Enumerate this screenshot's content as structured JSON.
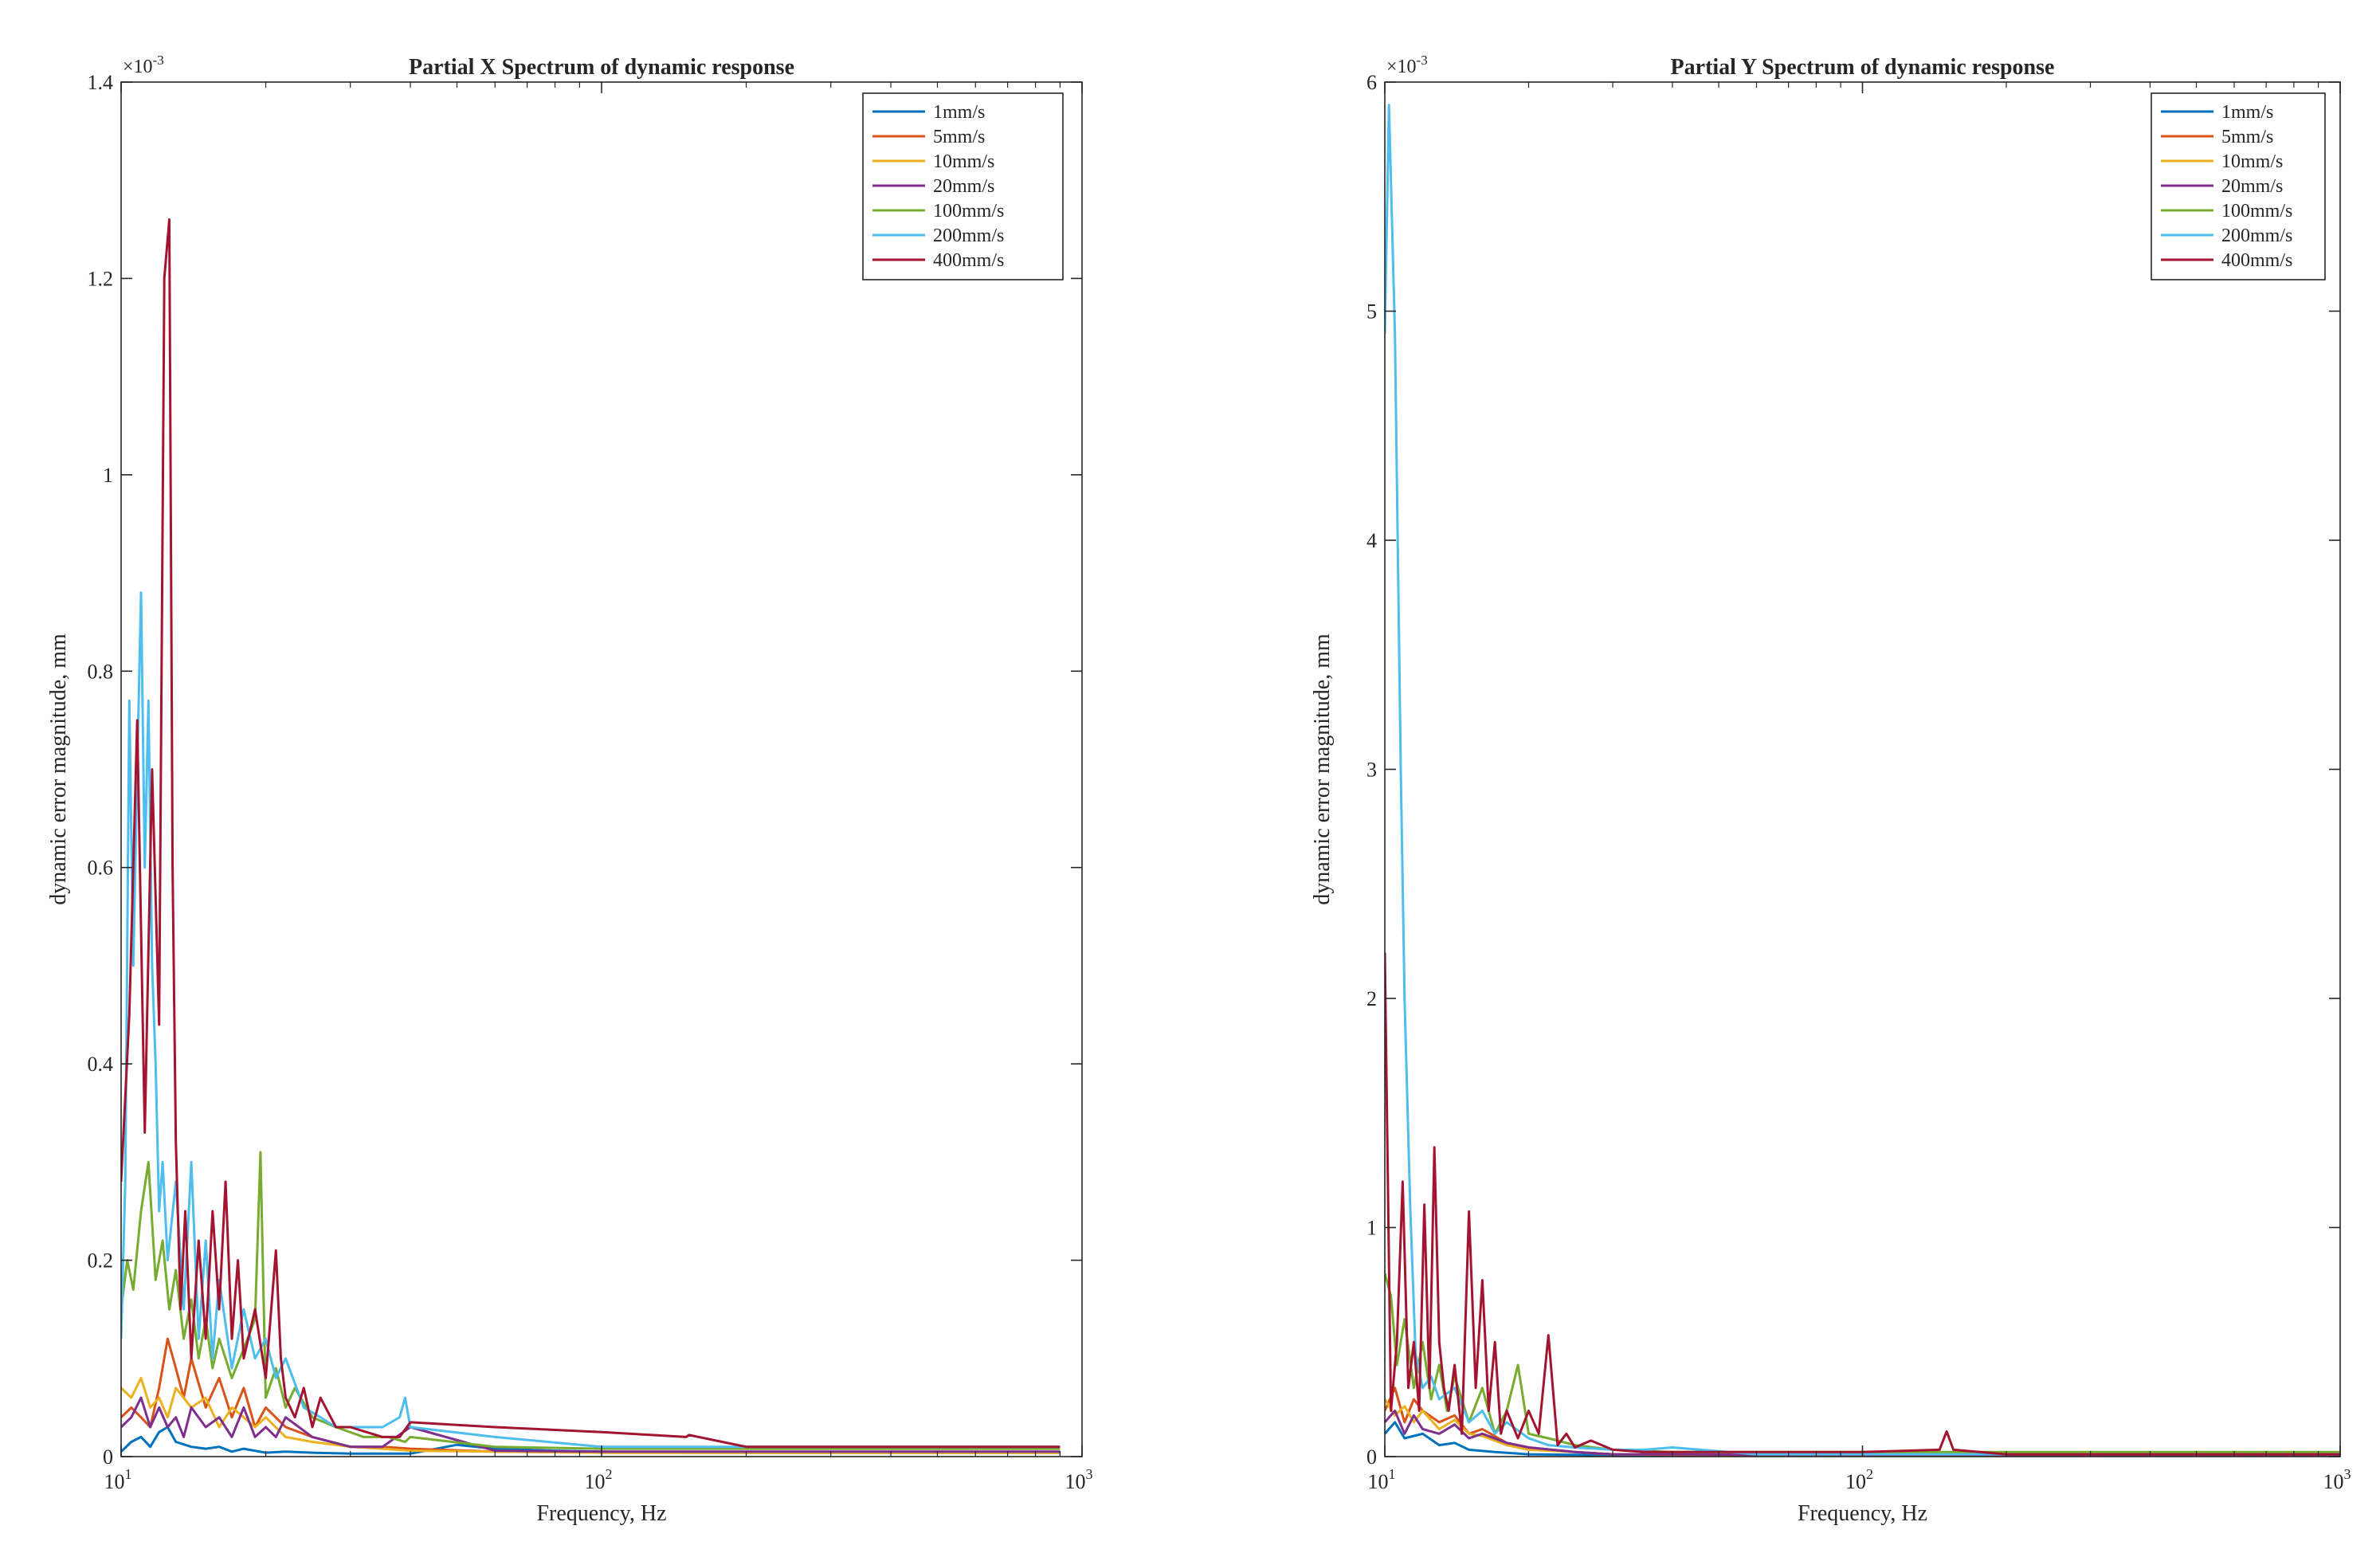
{
  "series_meta": [
    {
      "name": "1mm/s",
      "color": "#0072BD"
    },
    {
      "name": "5mm/s",
      "color": "#D95319"
    },
    {
      "name": "10mm/s",
      "color": "#EDB120"
    },
    {
      "name": "20mm/s",
      "color": "#7E2F8E"
    },
    {
      "name": "100mm/s",
      "color": "#77AC30"
    },
    {
      "name": "200mm/s",
      "color": "#4DBEEE"
    },
    {
      "name": "400mm/s",
      "color": "#A2142F"
    }
  ],
  "chart_data": [
    {
      "type": "line",
      "title": "Partial X Spectrum of dynamic response",
      "xlabel": "Frequency, Hz",
      "ylabel": "dynamic error magnitude, mm",
      "xscale": "log",
      "xlim": [
        10,
        1000
      ],
      "ylim": [
        0,
        0.0014
      ],
      "y_exponent": "×10",
      "y_exponent_power": "-3",
      "xticks": [
        10,
        100,
        1000
      ],
      "xtick_labels": [
        {
          "base": "10",
          "exp": "1"
        },
        {
          "base": "10",
          "exp": "2"
        },
        {
          "base": "10",
          "exp": "3"
        }
      ],
      "yticks": [
        0,
        0.0002,
        0.0004,
        0.0006,
        0.0008,
        0.001,
        0.0012,
        0.0014
      ],
      "ytick_labels": [
        "0",
        "0.2",
        "0.4",
        "0.6",
        "0.8",
        "1",
        "1.2",
        "1.4"
      ],
      "legend": "top-right",
      "grid": false,
      "series": [
        {
          "name": "1mm/s",
          "x": [
            10,
            10.5,
            11,
            11.5,
            12,
            12.5,
            13,
            14,
            15,
            16,
            17,
            18,
            20,
            22,
            25,
            30,
            35,
            40,
            50,
            60,
            80,
            100,
            150,
            200,
            300,
            500,
            800,
            900
          ],
          "y": [
            5e-06,
            1.5e-05,
            2e-05,
            1e-05,
            2.5e-05,
            3e-05,
            1.5e-05,
            1e-05,
            8e-06,
            1e-05,
            5e-06,
            8e-06,
            4e-06,
            5e-06,
            4e-06,
            3e-06,
            3e-06,
            3e-06,
            1.2e-05,
            8e-06,
            6e-06,
            5e-06,
            4e-06,
            4e-06,
            4e-06,
            4e-06,
            4e-06,
            4e-06
          ]
        },
        {
          "name": "5mm/s",
          "x": [
            10,
            10.5,
            11,
            11.5,
            12,
            12.5,
            13,
            13.5,
            14,
            15,
            16,
            17,
            18,
            19,
            20,
            22,
            25,
            30,
            35,
            40,
            60,
            100,
            150,
            200,
            300,
            500,
            800,
            900
          ],
          "y": [
            4e-05,
            5e-05,
            4e-05,
            3e-05,
            7e-05,
            0.00012,
            9e-05,
            6e-05,
            0.0001,
            5e-05,
            8e-05,
            4e-05,
            7e-05,
            3e-05,
            5e-05,
            3e-05,
            2e-05,
            1e-05,
            1e-05,
            8e-06,
            5e-06,
            4e-06,
            4e-06,
            4e-06,
            4e-06,
            4e-06,
            4e-06,
            4e-06
          ]
        },
        {
          "name": "10mm/s",
          "x": [
            10,
            10.5,
            11,
            11.5,
            12,
            12.5,
            13,
            14,
            15,
            16,
            17,
            18,
            19,
            20,
            22,
            25,
            30,
            35,
            40,
            60,
            100,
            150,
            200,
            300,
            500,
            800,
            900
          ],
          "y": [
            7e-05,
            6e-05,
            8e-05,
            5e-05,
            6e-05,
            4e-05,
            7e-05,
            5e-05,
            6e-05,
            3e-05,
            5e-05,
            4e-05,
            3e-05,
            4e-05,
            2e-05,
            1.5e-05,
            1e-05,
            8e-06,
            6e-06,
            5e-06,
            4e-06,
            4e-06,
            4e-06,
            4e-06,
            4e-06,
            4e-06,
            4e-06
          ]
        },
        {
          "name": "20mm/s",
          "x": [
            10,
            10.5,
            11,
            11.5,
            12,
            12.5,
            13,
            13.5,
            14,
            15,
            16,
            17,
            18,
            19,
            20,
            21,
            22,
            25,
            30,
            35,
            40,
            60,
            100,
            150,
            200,
            300,
            500,
            800,
            900
          ],
          "y": [
            3e-05,
            4e-05,
            6e-05,
            3e-05,
            5e-05,
            3e-05,
            4e-05,
            2e-05,
            5e-05,
            3e-05,
            4e-05,
            2e-05,
            5e-05,
            2e-05,
            3e-05,
            2e-05,
            4e-05,
            2e-05,
            1e-05,
            1e-05,
            3e-05,
            6e-06,
            5e-06,
            5e-06,
            5e-06,
            5e-06,
            5e-06,
            5e-06,
            5e-06
          ]
        },
        {
          "name": "100mm/s",
          "x": [
            10,
            10.3,
            10.6,
            11,
            11.4,
            11.8,
            12.2,
            12.6,
            13,
            13.5,
            14,
            14.5,
            15,
            15.5,
            16,
            17,
            18,
            19,
            19.5,
            20,
            21,
            22,
            23,
            25,
            28,
            32,
            36,
            39,
            40,
            60,
            100,
            150,
            200,
            300,
            500,
            800,
            900
          ],
          "y": [
            0.00015,
            0.0002,
            0.00017,
            0.00025,
            0.0003,
            0.00018,
            0.00022,
            0.00015,
            0.00019,
            0.00012,
            0.00016,
            0.0001,
            0.00014,
            9e-05,
            0.00012,
            8e-05,
            0.00011,
            0.00014,
            0.00031,
            6e-05,
            9e-05,
            5e-05,
            7e-05,
            4e-05,
            3e-05,
            2e-05,
            2e-05,
            1.5e-05,
            2e-05,
            1e-05,
            8e-06,
            8e-06,
            8e-06,
            8e-06,
            8e-06,
            8e-06,
            8e-06
          ]
        },
        {
          "name": "200mm/s",
          "x": [
            10,
            10.2,
            10.4,
            10.6,
            10.8,
            11,
            11.2,
            11.4,
            11.6,
            11.8,
            12,
            12.2,
            12.5,
            13,
            13.5,
            14,
            14.5,
            15,
            15.5,
            16,
            17,
            18,
            19,
            20,
            21,
            22,
            24,
            26,
            28,
            30,
            35,
            38,
            39,
            40,
            60,
            100,
            150,
            200,
            300,
            500,
            800,
            900
          ],
          "y": [
            0.00012,
            0.00028,
            0.00077,
            0.0005,
            0.0007,
            0.00088,
            0.0006,
            0.00077,
            0.0005,
            0.0004,
            0.00025,
            0.0003,
            0.0002,
            0.00028,
            0.00015,
            0.0003,
            0.00012,
            0.00022,
            0.0001,
            0.00018,
            9e-05,
            0.00015,
            0.0001,
            0.00012,
            8e-05,
            0.0001,
            5e-05,
            4e-05,
            3e-05,
            3e-05,
            3e-05,
            4e-05,
            6e-05,
            3e-05,
            2e-05,
            1e-05,
            1e-05,
            1e-05,
            1e-05,
            1e-05,
            1e-05,
            1e-05
          ]
        },
        {
          "name": "400mm/s",
          "x": [
            10,
            10.4,
            10.8,
            11.2,
            11.6,
            12,
            12.3,
            12.6,
            12.8,
            13,
            13.3,
            13.6,
            14,
            14.5,
            15,
            15.5,
            16,
            16.5,
            17,
            17.5,
            18,
            19,
            20,
            21,
            21.5,
            22,
            23,
            24,
            25,
            26,
            28,
            30,
            35,
            38,
            40,
            60,
            100,
            150,
            152,
            200,
            300,
            500,
            800,
            900
          ],
          "y": [
            0.00028,
            0.00045,
            0.00075,
            0.00033,
            0.0007,
            0.00044,
            0.0012,
            0.00126,
            0.0006,
            0.00032,
            0.00015,
            0.00025,
            0.0001,
            0.00022,
            0.00012,
            0.00025,
            0.00015,
            0.00028,
            0.00012,
            0.0002,
            0.0001,
            0.00015,
            8e-05,
            0.00021,
            0.0001,
            6e-05,
            4e-05,
            7e-05,
            3e-05,
            6e-05,
            3e-05,
            3e-05,
            2e-05,
            2e-05,
            3.5e-05,
            3e-05,
            2.5e-05,
            2e-05,
            2.2e-05,
            1e-05,
            1e-05,
            1e-05,
            1e-05,
            1e-05
          ]
        }
      ]
    },
    {
      "type": "line",
      "title": "Partial Y Spectrum of dynamic response",
      "xlabel": "Frequency, Hz",
      "ylabel": "dynamic error magnitude, mm",
      "xscale": "log",
      "xlim": [
        10,
        1000
      ],
      "ylim": [
        0,
        0.006
      ],
      "y_exponent": "×10",
      "y_exponent_power": "-3",
      "xticks": [
        10,
        100,
        1000
      ],
      "xtick_labels": [
        {
          "base": "10",
          "exp": "1"
        },
        {
          "base": "10",
          "exp": "2"
        },
        {
          "base": "10",
          "exp": "3"
        }
      ],
      "yticks": [
        0,
        0.001,
        0.002,
        0.003,
        0.004,
        0.005,
        0.006
      ],
      "ytick_labels": [
        "0",
        "1",
        "2",
        "3",
        "4",
        "5",
        "6"
      ],
      "legend": "top-right",
      "grid": false,
      "series": [
        {
          "name": "1mm/s",
          "x": [
            10,
            10.5,
            11,
            12,
            13,
            14,
            15,
            17,
            20,
            25,
            30,
            40,
            60,
            100,
            200,
            500,
            1000
          ],
          "y": [
            0.0001,
            0.00015,
            8e-05,
            0.0001,
            5e-05,
            6e-05,
            3e-05,
            2e-05,
            1e-05,
            8e-06,
            5e-06,
            4e-06,
            3e-06,
            3e-06,
            3e-06,
            3e-06,
            3e-06
          ]
        },
        {
          "name": "5mm/s",
          "x": [
            10,
            10.5,
            11,
            11.5,
            12,
            13,
            14,
            15,
            16,
            18,
            20,
            25,
            30,
            40,
            60,
            100,
            200,
            500,
            1000
          ],
          "y": [
            0.0002,
            0.0003,
            0.00015,
            0.00025,
            0.0002,
            0.00015,
            0.00018,
            0.0001,
            0.00012,
            6e-05,
            4e-05,
            2e-05,
            1e-05,
            8e-06,
            5e-06,
            5e-06,
            5e-06,
            5e-06,
            5e-06
          ]
        },
        {
          "name": "10mm/s",
          "x": [
            10,
            10.5,
            11,
            11.5,
            12,
            13,
            14,
            15,
            16,
            18,
            20,
            25,
            30,
            40,
            60,
            100,
            200,
            500,
            1000
          ],
          "y": [
            0.00025,
            0.00018,
            0.00022,
            0.00015,
            0.0002,
            0.00012,
            0.00016,
            0.0001,
            9e-05,
            5e-05,
            3e-05,
            2e-05,
            1e-05,
            1e-05,
            8e-06,
            8e-06,
            8e-06,
            8e-06,
            8e-06
          ]
        },
        {
          "name": "20mm/s",
          "x": [
            10,
            10.5,
            11,
            11.5,
            12,
            13,
            14,
            15,
            16,
            18,
            20,
            25,
            30,
            40,
            60,
            100,
            200,
            500,
            1000
          ],
          "y": [
            0.00015,
            0.0002,
            0.0001,
            0.00018,
            0.00012,
            0.0001,
            0.00014,
            8e-05,
            0.0001,
            6e-05,
            4e-05,
            2e-05,
            1e-05,
            1e-05,
            8e-06,
            8e-06,
            8e-06,
            8e-06,
            8e-06
          ]
        },
        {
          "name": "100mm/s",
          "x": [
            10,
            10.3,
            10.6,
            11,
            11.5,
            12,
            12.5,
            13,
            13.5,
            14,
            15,
            16,
            17,
            18,
            19,
            20,
            22,
            25,
            30,
            40,
            60,
            100,
            200,
            500,
            1000
          ],
          "y": [
            0.0008,
            0.0007,
            0.0004,
            0.0006,
            0.0003,
            0.0005,
            0.00025,
            0.0004,
            0.0002,
            0.00035,
            0.00015,
            0.0003,
            0.0001,
            0.0002,
            0.0004,
            0.0001,
            8e-05,
            5e-05,
            3e-05,
            2e-05,
            2e-05,
            2e-05,
            2e-05,
            2e-05,
            2e-05
          ]
        },
        {
          "name": "200mm/s",
          "x": [
            10,
            10.2,
            10.5,
            10.8,
            11,
            11.3,
            11.6,
            12,
            12.5,
            13,
            14,
            15,
            16,
            17,
            18,
            20,
            22,
            25,
            30,
            35,
            40,
            60,
            100,
            200,
            500,
            1000
          ],
          "y": [
            0.0049,
            0.0059,
            0.0049,
            0.003,
            0.002,
            0.0011,
            0.00045,
            0.0003,
            0.00035,
            0.00025,
            0.0003,
            0.00015,
            0.0002,
            0.0001,
            0.00015,
            8e-05,
            5e-05,
            4e-05,
            3e-05,
            3e-05,
            4e-05,
            1e-05,
            1e-05,
            1e-05,
            1e-05,
            1e-05
          ]
        },
        {
          "name": "400mm/s",
          "x": [
            10,
            10.3,
            10.6,
            10.9,
            11.2,
            11.5,
            11.8,
            12.1,
            12.4,
            12.7,
            13,
            13.3,
            13.6,
            14,
            14.5,
            15,
            15.5,
            16,
            16.5,
            17,
            17.5,
            18,
            19,
            20,
            21,
            22,
            23,
            24,
            25,
            27,
            30,
            35,
            40,
            60,
            100,
            145,
            150,
            155,
            200,
            500,
            1000
          ],
          "y": [
            0.0022,
            0.0002,
            0.0005,
            0.0012,
            0.0003,
            0.0005,
            0.0002,
            0.0011,
            0.0003,
            0.00135,
            0.0005,
            0.0003,
            0.0002,
            0.0004,
            0.0001,
            0.00107,
            0.0003,
            0.00077,
            0.0002,
            0.0005,
            0.0001,
            0.0002,
            8e-05,
            0.0002,
            0.0001,
            0.00053,
            5e-05,
            0.0001,
            4e-05,
            7e-05,
            3e-05,
            2e-05,
            2e-05,
            2e-05,
            2e-05,
            3e-05,
            0.00011,
            3e-05,
            1e-05,
            1e-05,
            1e-05
          ]
        }
      ]
    }
  ]
}
